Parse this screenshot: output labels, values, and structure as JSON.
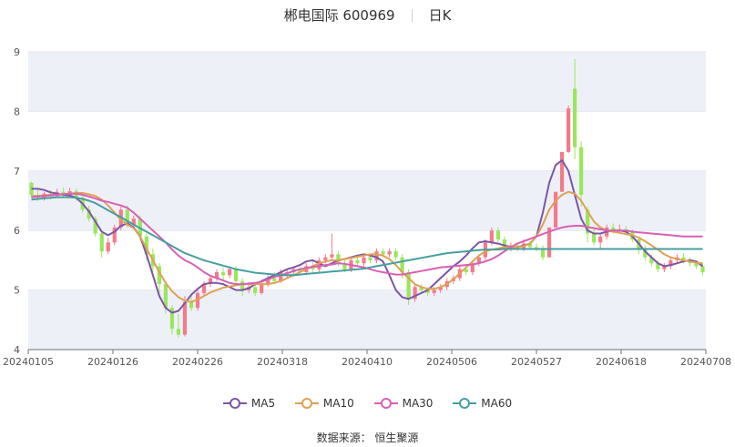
{
  "title": {
    "name": "郴电国际 600969",
    "period": "日K"
  },
  "source": "数据来源： 恒生聚源",
  "colors": {
    "up": "#f27b8b",
    "down": "#9ae65c",
    "MA5": "#7d55a6",
    "MA10": "#e0a055",
    "MA30": "#d860b4",
    "MA60": "#469ea0"
  },
  "chart_data": {
    "type": "candlestick",
    "ylim": [
      4,
      9
    ],
    "yticks": [
      4,
      5,
      6,
      7,
      8,
      9
    ],
    "xlabels": [
      "20240105",
      "20240126",
      "20240226",
      "20240318",
      "20240410",
      "20240506",
      "20240527",
      "20240618",
      "20240708"
    ],
    "grid": true,
    "legend_position": "bottom",
    "candles": [
      [
        6.8,
        6.6,
        6.82,
        6.55
      ],
      [
        6.6,
        6.55,
        6.68,
        6.5
      ],
      [
        6.55,
        6.62,
        6.65,
        6.5
      ],
      [
        6.62,
        6.58,
        6.68,
        6.52
      ],
      [
        6.58,
        6.65,
        6.7,
        6.55
      ],
      [
        6.65,
        6.6,
        6.72,
        6.55
      ],
      [
        6.6,
        6.66,
        6.72,
        6.56
      ],
      [
        6.66,
        6.55,
        6.7,
        6.5
      ],
      [
        6.55,
        6.35,
        6.6,
        6.3
      ],
      [
        6.35,
        6.2,
        6.42,
        6.15
      ],
      [
        6.2,
        5.95,
        6.25,
        5.9
      ],
      [
        5.95,
        5.65,
        6.0,
        5.55
      ],
      [
        5.65,
        5.8,
        5.88,
        5.6
      ],
      [
        5.8,
        6.05,
        6.1,
        5.75
      ],
      [
        6.05,
        6.35,
        6.4,
        6.0
      ],
      [
        6.35,
        6.1,
        6.42,
        6.05
      ],
      [
        6.1,
        6.2,
        6.25,
        6.05
      ],
      [
        6.2,
        5.9,
        6.25,
        5.85
      ],
      [
        5.9,
        5.6,
        5.95,
        5.5
      ],
      [
        5.6,
        5.4,
        5.7,
        5.3
      ],
      [
        5.4,
        5.1,
        5.45,
        4.95
      ],
      [
        5.1,
        4.7,
        5.15,
        4.6
      ],
      [
        4.7,
        4.35,
        4.75,
        4.25
      ],
      [
        4.35,
        4.25,
        4.6,
        4.2
      ],
      [
        4.25,
        4.8,
        4.9,
        4.22
      ],
      [
        4.8,
        4.7,
        4.95,
        4.65
      ],
      [
        4.7,
        4.95,
        5.0,
        4.65
      ],
      [
        4.95,
        5.1,
        5.15,
        4.9
      ],
      [
        5.1,
        5.2,
        5.25,
        5.05
      ],
      [
        5.2,
        5.3,
        5.35,
        5.15
      ],
      [
        5.3,
        5.25,
        5.38,
        5.15
      ],
      [
        5.25,
        5.35,
        5.4,
        5.2
      ],
      [
        5.35,
        5.15,
        5.4,
        5.1
      ],
      [
        5.15,
        5.0,
        5.2,
        4.9
      ],
      [
        5.0,
        5.05,
        5.1,
        4.95
      ],
      [
        5.05,
        4.95,
        5.1,
        4.9
      ],
      [
        4.95,
        5.1,
        5.15,
        4.92
      ],
      [
        5.1,
        5.2,
        5.25,
        5.05
      ],
      [
        5.2,
        5.15,
        5.3,
        5.1
      ],
      [
        5.15,
        5.3,
        5.35,
        5.12
      ],
      [
        5.3,
        5.3,
        5.35,
        5.2
      ],
      [
        5.3,
        5.35,
        5.4,
        5.25
      ],
      [
        5.35,
        5.3,
        5.4,
        5.25
      ],
      [
        5.3,
        5.4,
        5.45,
        5.25
      ],
      [
        5.4,
        5.35,
        5.5,
        5.3
      ],
      [
        5.35,
        5.5,
        5.55,
        5.3
      ],
      [
        5.5,
        5.55,
        5.6,
        5.45
      ],
      [
        5.55,
        5.6,
        5.95,
        5.5
      ],
      [
        5.6,
        5.45,
        5.65,
        5.4
      ],
      [
        5.45,
        5.35,
        5.5,
        5.3
      ],
      [
        5.35,
        5.5,
        5.55,
        5.3
      ],
      [
        5.5,
        5.45,
        5.55,
        5.4
      ],
      [
        5.45,
        5.55,
        5.6,
        5.4
      ],
      [
        5.55,
        5.5,
        5.6,
        5.45
      ],
      [
        5.5,
        5.65,
        5.7,
        5.45
      ],
      [
        5.65,
        5.6,
        5.7,
        5.55
      ],
      [
        5.6,
        5.65,
        5.7,
        5.55
      ],
      [
        5.65,
        5.55,
        5.7,
        5.5
      ],
      [
        5.55,
        5.3,
        5.6,
        5.2
      ],
      [
        5.3,
        4.85,
        5.35,
        4.75
      ],
      [
        4.85,
        5.05,
        5.1,
        4.8
      ],
      [
        5.05,
        5.0,
        5.1,
        4.95
      ],
      [
        5.0,
        4.95,
        5.05,
        4.9
      ],
      [
        4.95,
        5.0,
        5.05,
        4.9
      ],
      [
        5.0,
        5.05,
        5.1,
        4.95
      ],
      [
        5.05,
        5.15,
        5.2,
        5.0
      ],
      [
        5.15,
        5.2,
        5.25,
        5.1
      ],
      [
        5.2,
        5.35,
        5.4,
        5.15
      ],
      [
        5.35,
        5.3,
        5.4,
        5.25
      ],
      [
        5.3,
        5.45,
        5.5,
        5.25
      ],
      [
        5.45,
        5.55,
        5.6,
        5.4
      ],
      [
        5.55,
        5.8,
        5.85,
        5.5
      ],
      [
        5.8,
        6.0,
        6.05,
        5.75
      ],
      [
        6.0,
        5.85,
        6.05,
        5.8
      ],
      [
        5.85,
        5.7,
        5.9,
        5.65
      ],
      [
        5.7,
        5.75,
        5.8,
        5.65
      ],
      [
        5.75,
        5.7,
        5.8,
        5.65
      ],
      [
        5.7,
        5.78,
        5.85,
        5.65
      ],
      [
        5.78,
        5.72,
        5.82,
        5.68
      ],
      [
        5.72,
        5.7,
        5.78,
        5.65
      ],
      [
        5.7,
        5.55,
        5.75,
        5.5
      ],
      [
        5.55,
        6.05,
        6.05,
        5.55
      ],
      [
        6.05,
        6.65,
        6.65,
        6.05
      ],
      [
        6.65,
        7.32,
        7.32,
        6.65
      ],
      [
        7.32,
        8.05,
        8.1,
        7.3
      ],
      [
        8.38,
        7.4,
        8.88,
        7.2
      ],
      [
        7.4,
        6.6,
        7.5,
        6.4
      ],
      [
        6.35,
        5.95,
        6.4,
        5.8
      ],
      [
        5.95,
        5.8,
        6.05,
        5.75
      ],
      [
        5.8,
        5.9,
        5.95,
        5.7
      ],
      [
        5.9,
        6.05,
        6.1,
        5.85
      ],
      [
        6.05,
        6.0,
        6.12,
        5.95
      ],
      [
        6.0,
        6.02,
        6.1,
        5.95
      ],
      [
        6.02,
        5.98,
        6.08,
        5.92
      ],
      [
        5.98,
        5.85,
        6.02,
        5.8
      ],
      [
        5.85,
        5.7,
        5.9,
        5.6
      ],
      [
        5.7,
        5.55,
        5.75,
        5.5
      ],
      [
        5.55,
        5.45,
        5.6,
        5.4
      ],
      [
        5.45,
        5.35,
        5.5,
        5.3
      ],
      [
        5.35,
        5.4,
        5.45,
        5.3
      ],
      [
        5.4,
        5.5,
        5.55,
        5.35
      ],
      [
        5.5,
        5.55,
        5.6,
        5.45
      ],
      [
        5.55,
        5.5,
        5.62,
        5.45
      ],
      [
        5.5,
        5.45,
        5.55,
        5.4
      ],
      [
        5.45,
        5.4,
        5.5,
        5.35
      ],
      [
        5.4,
        5.3,
        5.45,
        5.25
      ]
    ],
    "series": [
      {
        "name": "MA5",
        "color": "#7d55a6",
        "values": [
          6.7,
          6.7,
          6.68,
          6.64,
          6.62,
          6.6,
          6.59,
          6.55,
          6.45,
          6.32,
          6.15,
          5.98,
          5.92,
          5.98,
          6.08,
          6.12,
          6.05,
          5.9,
          5.6,
          5.25,
          4.9,
          4.7,
          4.62,
          4.65,
          4.78,
          4.92,
          5.02,
          5.1,
          5.12,
          5.12,
          5.1,
          5.05,
          5.0,
          5.0,
          5.03,
          5.1,
          5.15,
          5.2,
          5.25,
          5.3,
          5.35,
          5.38,
          5.42,
          5.48,
          5.5,
          5.45,
          5.4,
          5.45,
          5.5,
          5.52,
          5.55,
          5.58,
          5.6,
          5.58,
          5.55,
          5.48,
          5.25,
          5.0,
          4.88,
          4.85,
          4.9,
          4.95,
          5.0,
          5.1,
          5.2,
          5.3,
          5.4,
          5.48,
          5.58,
          5.7,
          5.8,
          5.82,
          5.8,
          5.78,
          5.75,
          5.72,
          5.72,
          5.75,
          5.78,
          5.9,
          6.3,
          6.8,
          7.1,
          7.18,
          7.0,
          6.6,
          6.2,
          6.0,
          5.95,
          5.95,
          5.98,
          6.0,
          6.0,
          5.98,
          5.9,
          5.78,
          5.65,
          5.55,
          5.45,
          5.4,
          5.42,
          5.45,
          5.48,
          5.5,
          5.48,
          5.4
        ]
      },
      {
        "name": "MA10",
        "color": "#e0a055",
        "values": [
          6.58,
          6.58,
          6.59,
          6.6,
          6.6,
          6.61,
          6.62,
          6.63,
          6.63,
          6.61,
          6.58,
          6.52,
          6.42,
          6.3,
          6.18,
          6.1,
          6.04,
          5.9,
          5.7,
          5.5,
          5.3,
          5.12,
          4.98,
          4.88,
          4.82,
          4.8,
          4.84,
          4.9,
          4.96,
          5.0,
          5.04,
          5.06,
          5.08,
          5.1,
          5.1,
          5.1,
          5.1,
          5.1,
          5.12,
          5.15,
          5.2,
          5.25,
          5.3,
          5.35,
          5.4,
          5.45,
          5.48,
          5.5,
          5.5,
          5.52,
          5.54,
          5.56,
          5.58,
          5.6,
          5.6,
          5.58,
          5.52,
          5.42,
          5.3,
          5.2,
          5.1,
          5.05,
          5.02,
          5.02,
          5.05,
          5.1,
          5.18,
          5.28,
          5.38,
          5.48,
          5.58,
          5.65,
          5.68,
          5.7,
          5.72,
          5.72,
          5.72,
          5.74,
          5.78,
          5.9,
          6.1,
          6.35,
          6.5,
          6.6,
          6.65,
          6.62,
          6.5,
          6.32,
          6.15,
          6.05,
          6.0,
          5.98,
          5.96,
          5.94,
          5.92,
          5.88,
          5.82,
          5.75,
          5.68,
          5.6,
          5.55,
          5.52,
          5.5,
          5.48,
          5.46,
          5.45
        ]
      },
      {
        "name": "MA30",
        "color": "#d860b4",
        "values": [
          6.56,
          6.57,
          6.58,
          6.59,
          6.6,
          6.61,
          6.62,
          6.62,
          6.6,
          6.57,
          6.54,
          6.5,
          6.48,
          6.45,
          6.42,
          6.38,
          6.3,
          6.2,
          6.1,
          6.0,
          5.9,
          5.8,
          5.68,
          5.58,
          5.5,
          5.45,
          5.38,
          5.3,
          5.24,
          5.2,
          5.16,
          5.12,
          5.1,
          5.1,
          5.11,
          5.12,
          5.14,
          5.18,
          5.22,
          5.25,
          5.28,
          5.32,
          5.35,
          5.37,
          5.39,
          5.4,
          5.42,
          5.43,
          5.45,
          5.44,
          5.42,
          5.4,
          5.38,
          5.35,
          5.32,
          5.3,
          5.28,
          5.26,
          5.26,
          5.28,
          5.3,
          5.32,
          5.34,
          5.36,
          5.38,
          5.39,
          5.4,
          5.41,
          5.42,
          5.43,
          5.45,
          5.48,
          5.52,
          5.58,
          5.65,
          5.72,
          5.78,
          5.82,
          5.86,
          5.9,
          5.94,
          5.98,
          6.02,
          6.05,
          6.07,
          6.08,
          6.08,
          6.06,
          6.04,
          6.02,
          6.0,
          6.0,
          6.0,
          6.0,
          5.98,
          5.97,
          5.96,
          5.95,
          5.94,
          5.93,
          5.92,
          5.91,
          5.9,
          5.9,
          5.9,
          5.9
        ]
      },
      {
        "name": "MA60",
        "color": "#469ea0",
        "values": [
          6.52,
          6.53,
          6.54,
          6.55,
          6.56,
          6.56,
          6.56,
          6.55,
          6.53,
          6.5,
          6.46,
          6.4,
          6.34,
          6.28,
          6.22,
          6.16,
          6.1,
          6.04,
          5.98,
          5.92,
          5.86,
          5.8,
          5.74,
          5.68,
          5.62,
          5.58,
          5.54,
          5.5,
          5.47,
          5.44,
          5.41,
          5.38,
          5.35,
          5.33,
          5.31,
          5.29,
          5.28,
          5.27,
          5.26,
          5.25,
          5.25,
          5.25,
          5.26,
          5.27,
          5.28,
          5.29,
          5.3,
          5.31,
          5.32,
          5.33,
          5.34,
          5.35,
          5.36,
          5.38,
          5.4,
          5.42,
          5.44,
          5.46,
          5.48,
          5.5,
          5.52,
          5.54,
          5.56,
          5.58,
          5.6,
          5.62,
          5.63,
          5.64,
          5.65,
          5.66,
          5.67,
          5.68,
          5.68,
          5.68,
          5.69,
          5.69,
          5.69,
          5.69,
          5.69,
          5.69,
          5.69,
          5.69,
          5.69,
          5.69,
          5.69,
          5.69,
          5.69,
          5.69,
          5.69,
          5.69,
          5.69,
          5.69,
          5.69,
          5.69,
          5.69,
          5.69,
          5.69,
          5.69,
          5.69,
          5.69,
          5.69,
          5.69,
          5.69,
          5.69,
          5.69,
          5.69
        ]
      }
    ]
  }
}
